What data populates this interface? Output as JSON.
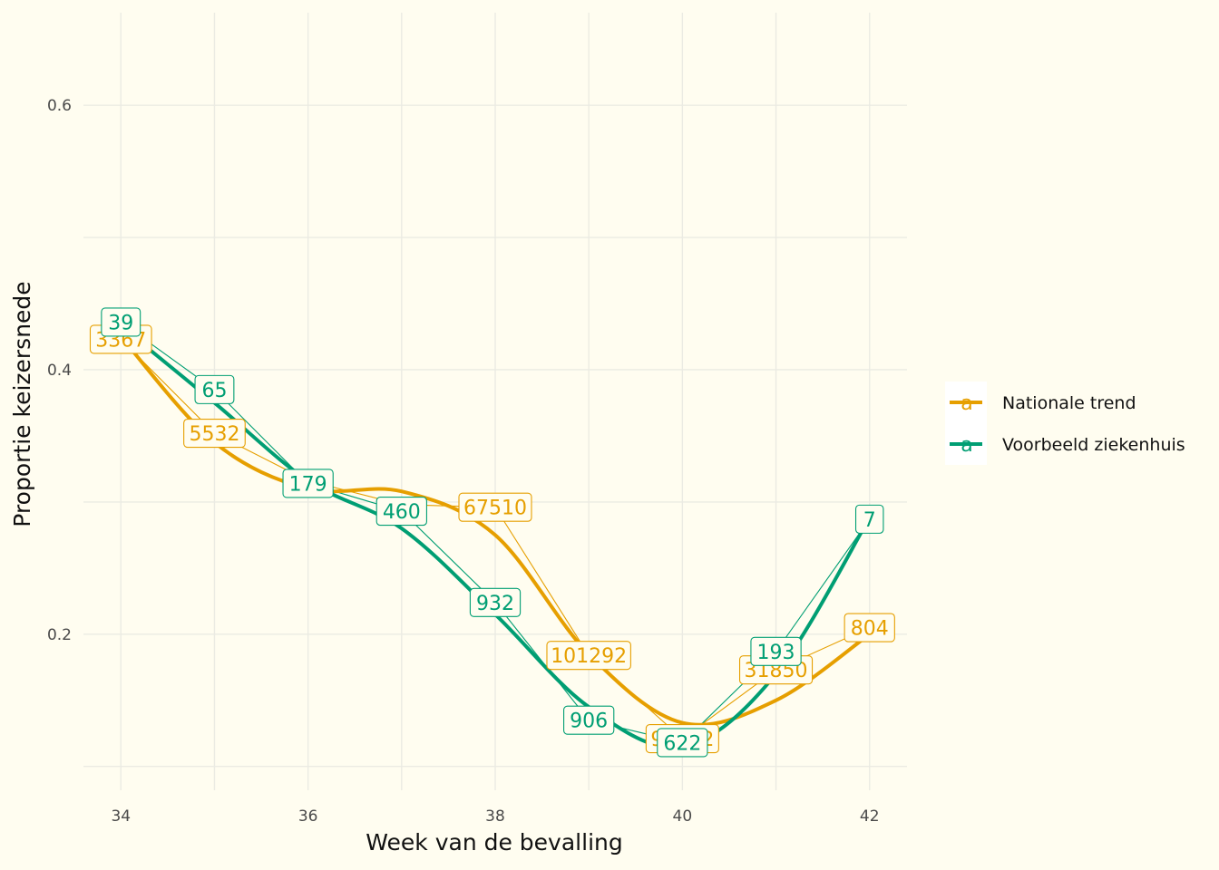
{
  "chart_data": {
    "type": "line",
    "xlabel": "Week van de bevalling",
    "ylabel": "Proportie keizersnede",
    "xlim": [
      33.6,
      42.4
    ],
    "ylim": [
      0.082,
      0.67
    ],
    "x_ticks": [
      34,
      36,
      38,
      40,
      42
    ],
    "x_tick_labels": [
      "34",
      "36",
      "38",
      "40",
      "42"
    ],
    "y_ticks": [
      0.2,
      0.4,
      0.6
    ],
    "y_tick_labels": [
      "0.2",
      "0.4",
      "0.6"
    ],
    "grid": true,
    "legend_position": "right",
    "series": [
      {
        "name": "Nationale trend",
        "color": "#E69F00",
        "x": [
          34,
          35,
          36,
          37,
          38,
          39,
          40,
          41,
          42
        ],
        "y": [
          0.423,
          0.352,
          0.316,
          0.298,
          0.296,
          0.184,
          0.121,
          0.173,
          0.205
        ],
        "labels": [
          "3367",
          "5532",
          "",
          "",
          "67510",
          "101292",
          "94332",
          "31850",
          "804"
        ],
        "smooth_y": [
          0.425,
          0.345,
          0.31,
          0.308,
          0.275,
          0.185,
          0.133,
          0.15,
          0.2
        ]
      },
      {
        "name": "Voorbeeld ziekenhuis",
        "color": "#009E73",
        "x": [
          34,
          35,
          36,
          37,
          38,
          39,
          40,
          41,
          42
        ],
        "y": [
          0.436,
          0.385,
          0.314,
          0.293,
          0.224,
          0.135,
          0.118,
          0.187,
          0.287
        ],
        "labels": [
          "39",
          "65",
          "179",
          "460",
          "932",
          "906",
          "622",
          "193",
          "7"
        ],
        "smooth_y": [
          0.433,
          0.375,
          0.316,
          0.28,
          0.215,
          0.145,
          0.115,
          0.17,
          0.288
        ]
      }
    ]
  },
  "legend": {
    "key_glyph": "a"
  }
}
